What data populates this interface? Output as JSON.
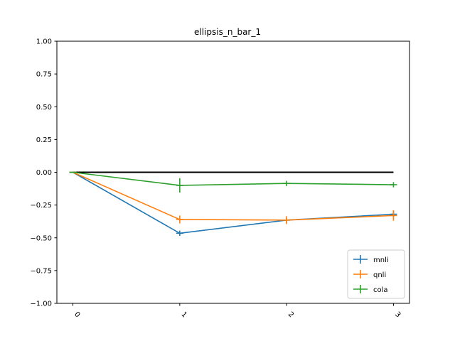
{
  "chart_data": {
    "type": "line",
    "title": "ellipsis_n_bar_1",
    "xlabel": "",
    "ylabel": "",
    "x": [
      0,
      1,
      2,
      3
    ],
    "x_tick_labels": [
      "0",
      "1",
      "2",
      "3"
    ],
    "y_ticks": [
      1.0,
      0.75,
      0.5,
      0.25,
      0.0,
      -0.25,
      -0.5,
      -0.75,
      -1.0
    ],
    "y_tick_labels": [
      "1.00",
      "0.75",
      "0.50",
      "0.25",
      "0.00",
      "−0.25",
      "−0.50",
      "−0.75",
      "−1.00"
    ],
    "ylim": [
      -1.0,
      1.0
    ],
    "xlim": [
      -0.15,
      3.15
    ],
    "grid": false,
    "legend_position": "bottom-right",
    "baseline": {
      "y": 0.0,
      "color": "#000000"
    },
    "series": [
      {
        "name": "mnli",
        "color": "#1f77b4",
        "values": [
          0.0,
          -0.465,
          -0.365,
          -0.32
        ],
        "errors": [
          0.0,
          0.02,
          0.02,
          0.025
        ]
      },
      {
        "name": "qnli",
        "color": "#ff7f0e",
        "values": [
          0.0,
          -0.36,
          -0.365,
          -0.33
        ],
        "errors": [
          0.0,
          0.03,
          0.03,
          0.04
        ]
      },
      {
        "name": "cola",
        "color": "#2ca02c",
        "values": [
          0.0,
          -0.1,
          -0.085,
          -0.095
        ],
        "errors": [
          0.0,
          0.055,
          0.02,
          0.02
        ]
      }
    ]
  }
}
